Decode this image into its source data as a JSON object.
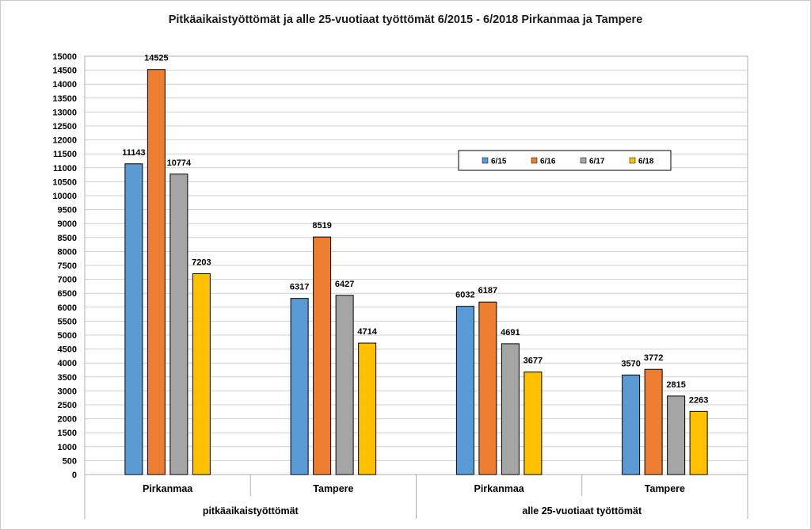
{
  "chart_data": {
    "type": "bar",
    "title": "Pitkäaikaistyöttömät ja alle 25-vuotiaat työttömät 6/2015 - 6/2018  Pirkanmaa ja Tampere",
    "categories": [
      "Pirkanmaa",
      "Tampere",
      "Pirkanmaa",
      "Tampere"
    ],
    "groups": [
      {
        "label": "pitkäaikaistyöttömät",
        "categories": [
          "Pirkanmaa",
          "Tampere"
        ]
      },
      {
        "label": "alle 25-vuotiaat työttömät",
        "categories": [
          "Pirkanmaa",
          "Tampere"
        ]
      }
    ],
    "series": [
      {
        "name": "6/15",
        "color": "#5b9bd5",
        "values": [
          11143,
          6317,
          6032,
          3570
        ]
      },
      {
        "name": "6/16",
        "color": "#ed7d31",
        "values": [
          14525,
          8519,
          6187,
          3772
        ]
      },
      {
        "name": "6/17",
        "color": "#a5a5a5",
        "values": [
          10774,
          6427,
          4691,
          2815
        ]
      },
      {
        "name": "6/18",
        "color": "#ffc000",
        "values": [
          7203,
          4714,
          3677,
          2263
        ]
      }
    ],
    "ylim": [
      0,
      15000
    ],
    "ytick_step": 500,
    "grid": true,
    "legend_position": "right-inside"
  }
}
